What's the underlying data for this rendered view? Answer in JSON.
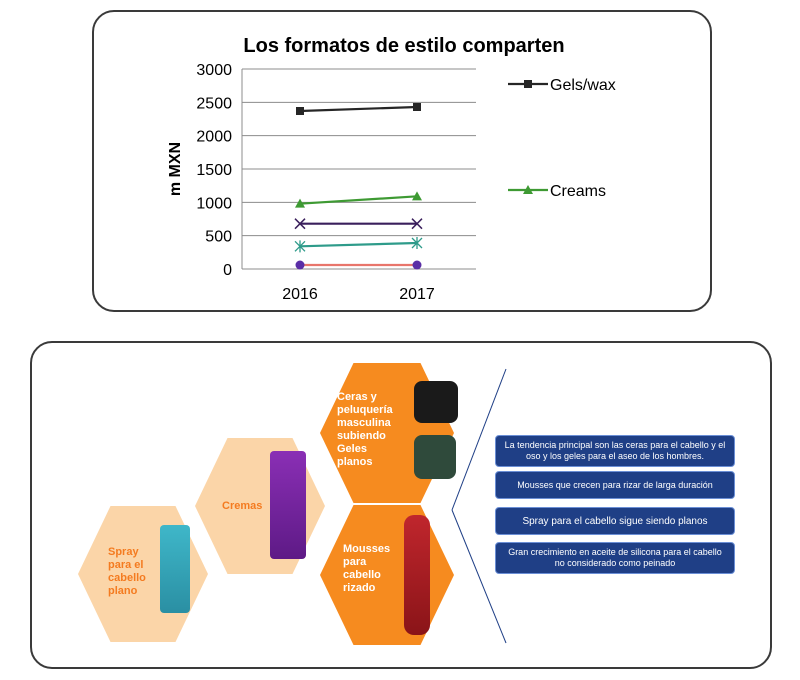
{
  "chart_data": {
    "type": "line",
    "title": "Los formatos de estilo comparten",
    "xlabel": "",
    "ylabel": "m MXN",
    "categories": [
      "2016",
      "2017"
    ],
    "ylim": [
      0,
      3000
    ],
    "yticks": [
      0,
      500,
      1000,
      1500,
      2000,
      2500,
      3000
    ],
    "grid": true,
    "series": [
      {
        "name": "Gels/wax",
        "values": [
          2370,
          2430
        ],
        "color": "#262626",
        "marker": "square"
      },
      {
        "name": "Creams",
        "values": [
          980,
          1090
        ],
        "color": "#3e9a33",
        "marker": "triangle"
      },
      {
        "name": "",
        "values": [
          680,
          680
        ],
        "color": "#3a1f5c",
        "marker": "x"
      },
      {
        "name": "",
        "values": [
          340,
          390
        ],
        "color": "#2e9b8a",
        "marker": "star"
      },
      {
        "name": "",
        "values": [
          60,
          60
        ],
        "color": "#e8756b",
        "marker": "circle"
      }
    ],
    "legend": [
      "Gels/wax",
      "Creams"
    ]
  },
  "infographic": {
    "hexagons": {
      "spray": "Spray\npara el\ncabello\nplano",
      "cremas": "Cremas",
      "ceras": "Ceras y\npeluquería\nmasculina\nsubiendo\nGeles\nplanos",
      "mousses": "Mousses\npara\ncabello\nrizado"
    },
    "boxes": [
      "La tendencia principal son las ceras para el cabello y el oso y los geles para el aseo de los hombres.",
      "Mousses que crecen para rizar de larga duración",
      "Spray para el cabello sigue siendo planos",
      "Gran crecimiento en aceite de silicona para el cabello no considerado como peinado"
    ],
    "colors": {
      "hex_light": "#fbd5a8",
      "hex_orange": "#f68b1f",
      "box_blue": "#1f3f86"
    }
  }
}
